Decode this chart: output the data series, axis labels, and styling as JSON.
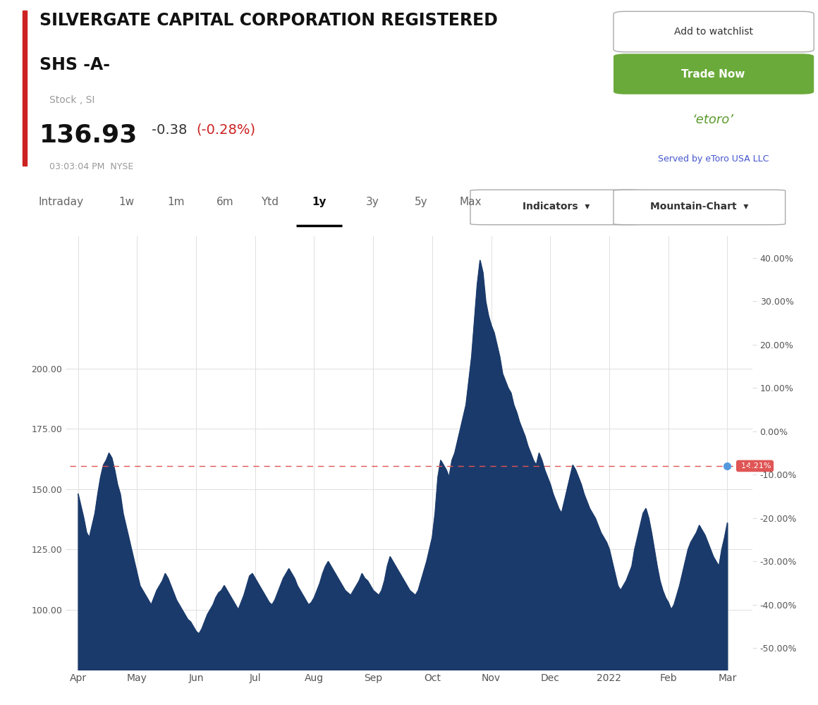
{
  "title_line1": "SILVERGATE CAPITAL CORPORATION REGISTERED",
  "title_line2": "SHS -A-",
  "subtitle": "Stock , SI",
  "price": "136.93",
  "change": "-0.38",
  "change_pct": "(-0.28%)",
  "time_exchange": "03:03:04 PM  NYSE",
  "reference_price": 159.6,
  "reference_label": "-14.21%",
  "chart_fill_color": "#1a3a6b",
  "chart_line_color": "#1a3a6b",
  "reference_line_color": "#e05555",
  "background_color": "#ffffff",
  "ylim_left": [
    75,
    255
  ],
  "ylim_right": [
    -55,
    45
  ],
  "yticks_left": [
    100.0,
    125.0,
    150.0,
    175.0,
    200.0
  ],
  "yticks_right": [
    -50.0,
    -40.0,
    -30.0,
    -20.0,
    -10.0,
    0.0,
    10.0,
    20.0,
    30.0,
    40.0
  ],
  "x_labels": [
    "Apr",
    "May",
    "Jun",
    "Jul",
    "Aug",
    "Sep",
    "Oct",
    "Nov",
    "Dec",
    "2022",
    "Feb",
    "Mar"
  ],
  "x_positions": [
    0,
    21,
    42,
    63,
    84,
    105,
    126,
    147,
    168,
    189,
    210,
    231
  ],
  "nav_items": [
    "Intraday",
    "1w",
    "1m",
    "6m",
    "Ytd",
    "1y",
    "3y",
    "5y",
    "Max"
  ],
  "nav_active": "1y",
  "price_data": [
    148,
    143,
    138,
    132,
    130,
    135,
    140,
    148,
    155,
    160,
    162,
    165,
    163,
    158,
    152,
    148,
    140,
    135,
    130,
    125,
    120,
    115,
    110,
    108,
    106,
    104,
    102,
    105,
    108,
    110,
    112,
    115,
    113,
    110,
    107,
    104,
    102,
    100,
    98,
    96,
    95,
    93,
    91,
    90,
    92,
    95,
    98,
    100,
    102,
    105,
    107,
    108,
    110,
    108,
    106,
    104,
    102,
    100,
    103,
    106,
    110,
    114,
    115,
    113,
    111,
    109,
    107,
    105,
    103,
    102,
    104,
    107,
    110,
    113,
    115,
    117,
    115,
    113,
    110,
    108,
    106,
    104,
    102,
    103,
    105,
    108,
    111,
    115,
    118,
    120,
    118,
    116,
    114,
    112,
    110,
    108,
    107,
    106,
    108,
    110,
    112,
    115,
    113,
    112,
    110,
    108,
    107,
    106,
    108,
    112,
    118,
    122,
    120,
    118,
    116,
    114,
    112,
    110,
    108,
    107,
    106,
    108,
    112,
    116,
    120,
    125,
    130,
    140,
    155,
    162,
    160,
    158,
    155,
    162,
    165,
    170,
    175,
    180,
    185,
    195,
    205,
    220,
    235,
    245,
    240,
    228,
    222,
    218,
    215,
    210,
    205,
    198,
    195,
    192,
    190,
    185,
    182,
    178,
    175,
    172,
    168,
    165,
    162,
    160,
    165,
    162,
    158,
    155,
    152,
    148,
    145,
    142,
    140,
    145,
    150,
    155,
    160,
    158,
    155,
    152,
    148,
    145,
    142,
    140,
    138,
    135,
    132,
    130,
    128,
    125,
    120,
    115,
    110,
    108,
    110,
    112,
    115,
    118,
    125,
    130,
    135,
    140,
    142,
    138,
    132,
    125,
    118,
    112,
    108,
    105,
    103,
    100,
    102,
    106,
    110,
    115,
    120,
    125,
    128,
    130,
    132,
    135,
    133,
    131,
    128,
    125,
    122,
    120,
    118,
    125,
    130,
    136
  ]
}
